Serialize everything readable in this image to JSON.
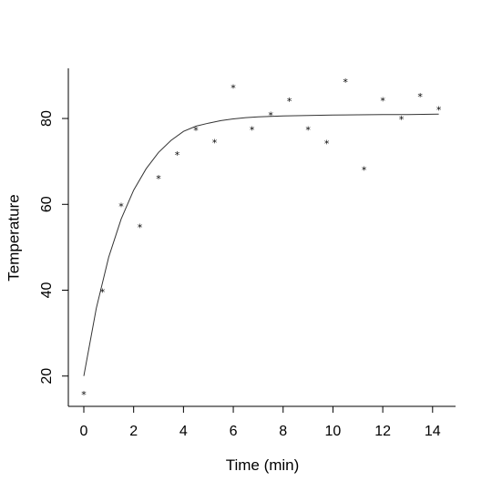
{
  "chart_data": {
    "type": "scatter",
    "title": "",
    "xlabel": "Time (min)",
    "ylabel": "Temperature",
    "xlim": [
      0,
      14.3
    ],
    "ylim": [
      15.7,
      88.5
    ],
    "xticks": [
      0,
      2,
      4,
      6,
      8,
      10,
      12,
      14
    ],
    "yticks": [
      20,
      40,
      60,
      80
    ],
    "xtick_labels": [
      "0",
      "2",
      "4",
      "6",
      "8",
      "10",
      "12",
      "14"
    ],
    "ytick_labels": [
      "20",
      "40",
      "60",
      "80"
    ],
    "grid": false,
    "marker": "*",
    "series": [
      {
        "type": "scatter",
        "x": [
          0,
          0.75,
          1.5,
          2.25,
          3.0,
          3.75,
          4.5,
          5.25,
          6.0,
          6.75,
          7.5,
          8.25,
          9.0,
          9.75,
          10.5,
          11.25,
          12.0,
          12.75,
          13.5,
          14.25
        ],
        "y": [
          15.7,
          39.6,
          59.5,
          54.7,
          66.0,
          71.5,
          77.2,
          74.4,
          87.1,
          77.4,
          80.8,
          84.0,
          77.4,
          74.2,
          88.5,
          68.0,
          84.2,
          79.8,
          85.1,
          82.0
        ]
      },
      {
        "type": "line",
        "x": [
          0,
          0.5,
          1,
          1.5,
          2,
          2.5,
          3,
          3.5,
          4,
          4.5,
          5,
          5.5,
          6,
          6.5,
          7,
          7.5,
          8,
          9,
          10,
          11,
          12,
          13,
          14.25
        ],
        "y": [
          20.0,
          35.8,
          47.7,
          56.6,
          63.3,
          68.3,
          72.1,
          74.9,
          77.0,
          78.2,
          78.9,
          79.5,
          79.9,
          80.2,
          80.4,
          80.5,
          80.6,
          80.7,
          80.8,
          80.85,
          80.9,
          80.9,
          81.0
        ]
      }
    ]
  }
}
